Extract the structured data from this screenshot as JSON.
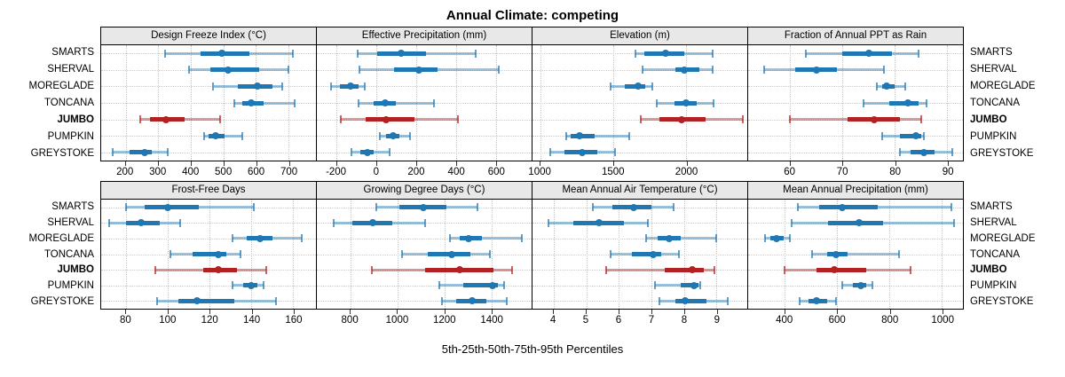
{
  "title": "Annual Climate: competing",
  "caption": "5th-25th-50th-75th-95th Percentiles",
  "locations": [
    "SMARTS",
    "SHERVAL",
    "MOREGLADE",
    "TONCANA",
    "JUMBO",
    "PUMPKIN",
    "GREYSTOKE"
  ],
  "highlight_location": "JUMBO",
  "colors": {
    "series_blue": "#1F77B4",
    "series_red": "#B22222",
    "grid": "#C4C4C4",
    "header_bg": "#E8E8E8",
    "panel_border": "#000000"
  },
  "chart_data": [
    {
      "type": "errorbar",
      "title": "Design Freeze Index (°C)",
      "row": 0,
      "col": 0,
      "percentiles": [
        5,
        25,
        50,
        75,
        95
      ],
      "xlim": [
        125,
        785
      ],
      "ticks": [
        200,
        300,
        400,
        500,
        600,
        700
      ],
      "series": [
        {
          "name": "SMARTS",
          "values": [
            320,
            430,
            495,
            580,
            715
          ]
        },
        {
          "name": "SHERVAL",
          "values": [
            395,
            460,
            515,
            610,
            700
          ]
        },
        {
          "name": "MOREGLADE",
          "values": [
            470,
            545,
            605,
            650,
            680
          ]
        },
        {
          "name": "TONCANA",
          "values": [
            535,
            560,
            585,
            625,
            720
          ]
        },
        {
          "name": "JUMBO",
          "values": [
            245,
            275,
            325,
            380,
            490
          ]
        },
        {
          "name": "PUMPKIN",
          "values": [
            440,
            455,
            478,
            505,
            558
          ]
        },
        {
          "name": "GREYSTOKE",
          "values": [
            160,
            212,
            258,
            280,
            330
          ]
        }
      ]
    },
    {
      "type": "errorbar",
      "title": "Effective Precipitation (mm)",
      "row": 0,
      "col": 1,
      "percentiles": [
        5,
        25,
        50,
        75,
        95
      ],
      "xlim": [
        -300,
        780
      ],
      "ticks": [
        -200,
        0,
        200,
        400,
        600
      ],
      "series": [
        {
          "name": "SMARTS",
          "values": [
            -95,
            5,
            125,
            250,
            500
          ]
        },
        {
          "name": "SHERVAL",
          "values": [
            -85,
            90,
            215,
            305,
            615
          ]
        },
        {
          "name": "MOREGLADE",
          "values": [
            -230,
            -185,
            -130,
            -90,
            -60
          ]
        },
        {
          "name": "TONCANA",
          "values": [
            -90,
            -15,
            45,
            95,
            290
          ]
        },
        {
          "name": "JUMBO",
          "values": [
            -180,
            -55,
            50,
            190,
            410
          ]
        },
        {
          "name": "PUMPKIN",
          "values": [
            15,
            50,
            85,
            115,
            170
          ]
        },
        {
          "name": "GREYSTOKE",
          "values": [
            -125,
            -80,
            -45,
            -15,
            65
          ]
        }
      ]
    },
    {
      "type": "errorbar",
      "title": "Elevation (m)",
      "row": 0,
      "col": 2,
      "percentiles": [
        5,
        25,
        50,
        75,
        95
      ],
      "xlim": [
        945,
        2420
      ],
      "ticks": [
        1000,
        1500,
        2000
      ],
      "series": [
        {
          "name": "SMARTS",
          "values": [
            1650,
            1710,
            1860,
            1985,
            2180
          ]
        },
        {
          "name": "SHERVAL",
          "values": [
            1700,
            1925,
            1990,
            2090,
            2185
          ]
        },
        {
          "name": "MOREGLADE",
          "values": [
            1480,
            1580,
            1670,
            1720,
            1770
          ]
        },
        {
          "name": "TONCANA",
          "values": [
            1800,
            1920,
            2000,
            2070,
            2190
          ]
        },
        {
          "name": "JUMBO",
          "values": [
            1690,
            1815,
            1970,
            2135,
            2390
          ]
        },
        {
          "name": "PUMPKIN",
          "values": [
            1175,
            1210,
            1270,
            1370,
            1610
          ]
        },
        {
          "name": "GREYSTOKE",
          "values": [
            1065,
            1165,
            1285,
            1390,
            1510
          ]
        }
      ]
    },
    {
      "type": "errorbar",
      "title": "Fraction of Annual PPT as Rain",
      "row": 0,
      "col": 3,
      "percentiles": [
        5,
        25,
        50,
        75,
        95
      ],
      "xlim": [
        52,
        93
      ],
      "ticks": [
        60,
        70,
        80,
        90
      ],
      "series": [
        {
          "name": "SMARTS",
          "values": [
            63,
            70,
            75,
            79.5,
            84.5
          ]
        },
        {
          "name": "SHERVAL",
          "values": [
            55,
            61,
            65,
            69,
            78
          ]
        },
        {
          "name": "MOREGLADE",
          "values": [
            76.5,
            77.5,
            78.5,
            80,
            82
          ]
        },
        {
          "name": "TONCANA",
          "values": [
            74,
            79,
            82.5,
            84.5,
            86
          ]
        },
        {
          "name": "JUMBO",
          "values": [
            60,
            71,
            76,
            81,
            85
          ]
        },
        {
          "name": "PUMPKIN",
          "values": [
            77.5,
            81,
            84,
            85,
            85.5
          ]
        },
        {
          "name": "GREYSTOKE",
          "values": [
            81,
            83,
            85.5,
            87.5,
            91
          ]
        }
      ]
    },
    {
      "type": "errorbar",
      "title": "Frost-Free Days",
      "row": 1,
      "col": 0,
      "percentiles": [
        5,
        25,
        50,
        75,
        95
      ],
      "xlim": [
        68,
        171
      ],
      "ticks": [
        80,
        100,
        120,
        140,
        160
      ],
      "series": [
        {
          "name": "SMARTS",
          "values": [
            80,
            89,
            100,
            115,
            141
          ]
        },
        {
          "name": "SHERVAL",
          "values": [
            72,
            80,
            87,
            96,
            106
          ]
        },
        {
          "name": "MOREGLADE",
          "values": [
            131,
            138,
            144,
            150,
            164
          ]
        },
        {
          "name": "TONCANA",
          "values": [
            101,
            112,
            124,
            128,
            135
          ]
        },
        {
          "name": "JUMBO",
          "values": [
            94,
            117,
            124,
            133,
            147
          ]
        },
        {
          "name": "PUMPKIN",
          "values": [
            131,
            136,
            140,
            143,
            146
          ]
        },
        {
          "name": "GREYSTOKE",
          "values": [
            95,
            105,
            114,
            132,
            152
          ]
        }
      ]
    },
    {
      "type": "errorbar",
      "title": "Growing Degree Days (°C)",
      "row": 1,
      "col": 1,
      "percentiles": [
        5,
        25,
        50,
        75,
        95
      ],
      "xlim": [
        657,
        1572
      ],
      "ticks": [
        800,
        1000,
        1200,
        1400
      ],
      "series": [
        {
          "name": "SMARTS",
          "values": [
            910,
            1010,
            1110,
            1210,
            1340
          ]
        },
        {
          "name": "SHERVAL",
          "values": [
            730,
            810,
            895,
            980,
            1120
          ]
        },
        {
          "name": "MOREGLADE",
          "values": [
            1225,
            1265,
            1305,
            1360,
            1530
          ]
        },
        {
          "name": "TONCANA",
          "values": [
            1020,
            1130,
            1230,
            1310,
            1395
          ]
        },
        {
          "name": "JUMBO",
          "values": [
            890,
            1120,
            1265,
            1410,
            1490
          ]
        },
        {
          "name": "PUMPKIN",
          "values": [
            1180,
            1280,
            1405,
            1430,
            1455
          ]
        },
        {
          "name": "GREYSTOKE",
          "values": [
            1190,
            1250,
            1320,
            1380,
            1465
          ]
        }
      ]
    },
    {
      "type": "errorbar",
      "title": "Mean Annual Air Temperature (°C)",
      "row": 1,
      "col": 2,
      "percentiles": [
        5,
        25,
        50,
        75,
        95
      ],
      "xlim": [
        3.35,
        9.95
      ],
      "ticks": [
        4,
        5,
        6,
        7,
        8,
        9
      ],
      "series": [
        {
          "name": "SMARTS",
          "values": [
            5.2,
            5.8,
            6.45,
            7.0,
            7.7
          ]
        },
        {
          "name": "SHERVAL",
          "values": [
            3.85,
            4.6,
            5.4,
            6.15,
            6.9
          ]
        },
        {
          "name": "MOREGLADE",
          "values": [
            6.85,
            7.2,
            7.55,
            7.9,
            9.0
          ]
        },
        {
          "name": "TONCANA",
          "values": [
            5.75,
            6.4,
            7.05,
            7.3,
            7.85
          ]
        },
        {
          "name": "JUMBO",
          "values": [
            5.6,
            7.4,
            8.25,
            8.6,
            8.95
          ]
        },
        {
          "name": "PUMPKIN",
          "values": [
            7.1,
            7.9,
            8.3,
            8.45,
            8.5
          ]
        },
        {
          "name": "GREYSTOKE",
          "values": [
            7.25,
            7.75,
            8.05,
            8.7,
            9.35
          ]
        }
      ]
    },
    {
      "type": "errorbar",
      "title": "Mean Annual Precipitation (mm)",
      "row": 1,
      "col": 3,
      "percentiles": [
        5,
        25,
        50,
        75,
        95
      ],
      "xlim": [
        260,
        1080
      ],
      "ticks": [
        400,
        600,
        800,
        1000
      ],
      "series": [
        {
          "name": "SMARTS",
          "values": [
            450,
            530,
            620,
            755,
            1035
          ]
        },
        {
          "name": "SHERVAL",
          "values": [
            425,
            565,
            685,
            775,
            1045
          ]
        },
        {
          "name": "MOREGLADE",
          "values": [
            325,
            345,
            370,
            395,
            420
          ]
        },
        {
          "name": "TONCANA",
          "values": [
            505,
            560,
            595,
            640,
            835
          ]
        },
        {
          "name": "JUMBO",
          "values": [
            400,
            520,
            590,
            710,
            880
          ]
        },
        {
          "name": "PUMPKIN",
          "values": [
            620,
            660,
            690,
            710,
            735
          ]
        },
        {
          "name": "GREYSTOKE",
          "values": [
            455,
            490,
            520,
            560,
            595
          ]
        }
      ]
    }
  ]
}
